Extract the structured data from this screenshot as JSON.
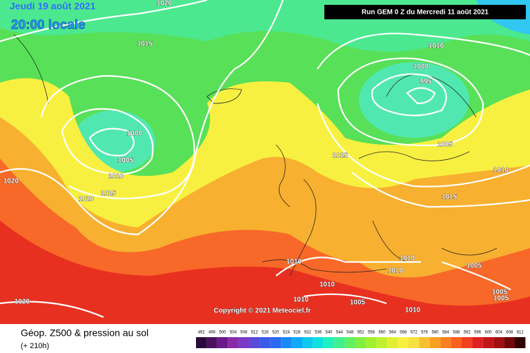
{
  "header": {
    "date": "Jeudi 19 août 2021",
    "time": "20:00 locale",
    "run": "Run GEM 0 Z du Mercredi 11 août 2021",
    "copyright": "Copyright © 2021 Meteociel.fr"
  },
  "footer": {
    "title": "Géop. Z500 & pression au sol",
    "lead": "(+ 210h)"
  },
  "isobar_labels": [
    1020,
    1015,
    1000,
    1005,
    1010,
    1015,
    1020,
    1020,
    1010,
    1000,
    995,
    1005,
    1015,
    1010,
    1015,
    1010,
    1010,
    1010,
    1005,
    1010,
    1010,
    1005,
    1005,
    1005,
    1010,
    1020
  ],
  "legend": {
    "values": [
      492,
      496,
      500,
      504,
      508,
      512,
      516,
      520,
      524,
      528,
      532,
      536,
      540,
      544,
      548,
      552,
      556,
      560,
      564,
      568,
      572,
      576,
      580,
      584,
      588,
      592,
      596,
      600,
      604,
      608,
      612
    ],
    "colors": [
      "#2a0a3a",
      "#4b1060",
      "#6a1a8a",
      "#8a2aa8",
      "#7a3ac8",
      "#5a4ad8",
      "#3a5ae8",
      "#2a6af0",
      "#1a8af8",
      "#10a8f8",
      "#10c8f0",
      "#10e0e0",
      "#20f0c0",
      "#40f090",
      "#60f060",
      "#80f040",
      "#a0f030",
      "#c0f030",
      "#e0f030",
      "#f8f040",
      "#f8e040",
      "#f8c030",
      "#f8a020",
      "#f88020",
      "#f86020",
      "#f04020",
      "#e02020",
      "#c01818",
      "#a01010",
      "#700808",
      "#300000"
    ]
  }
}
